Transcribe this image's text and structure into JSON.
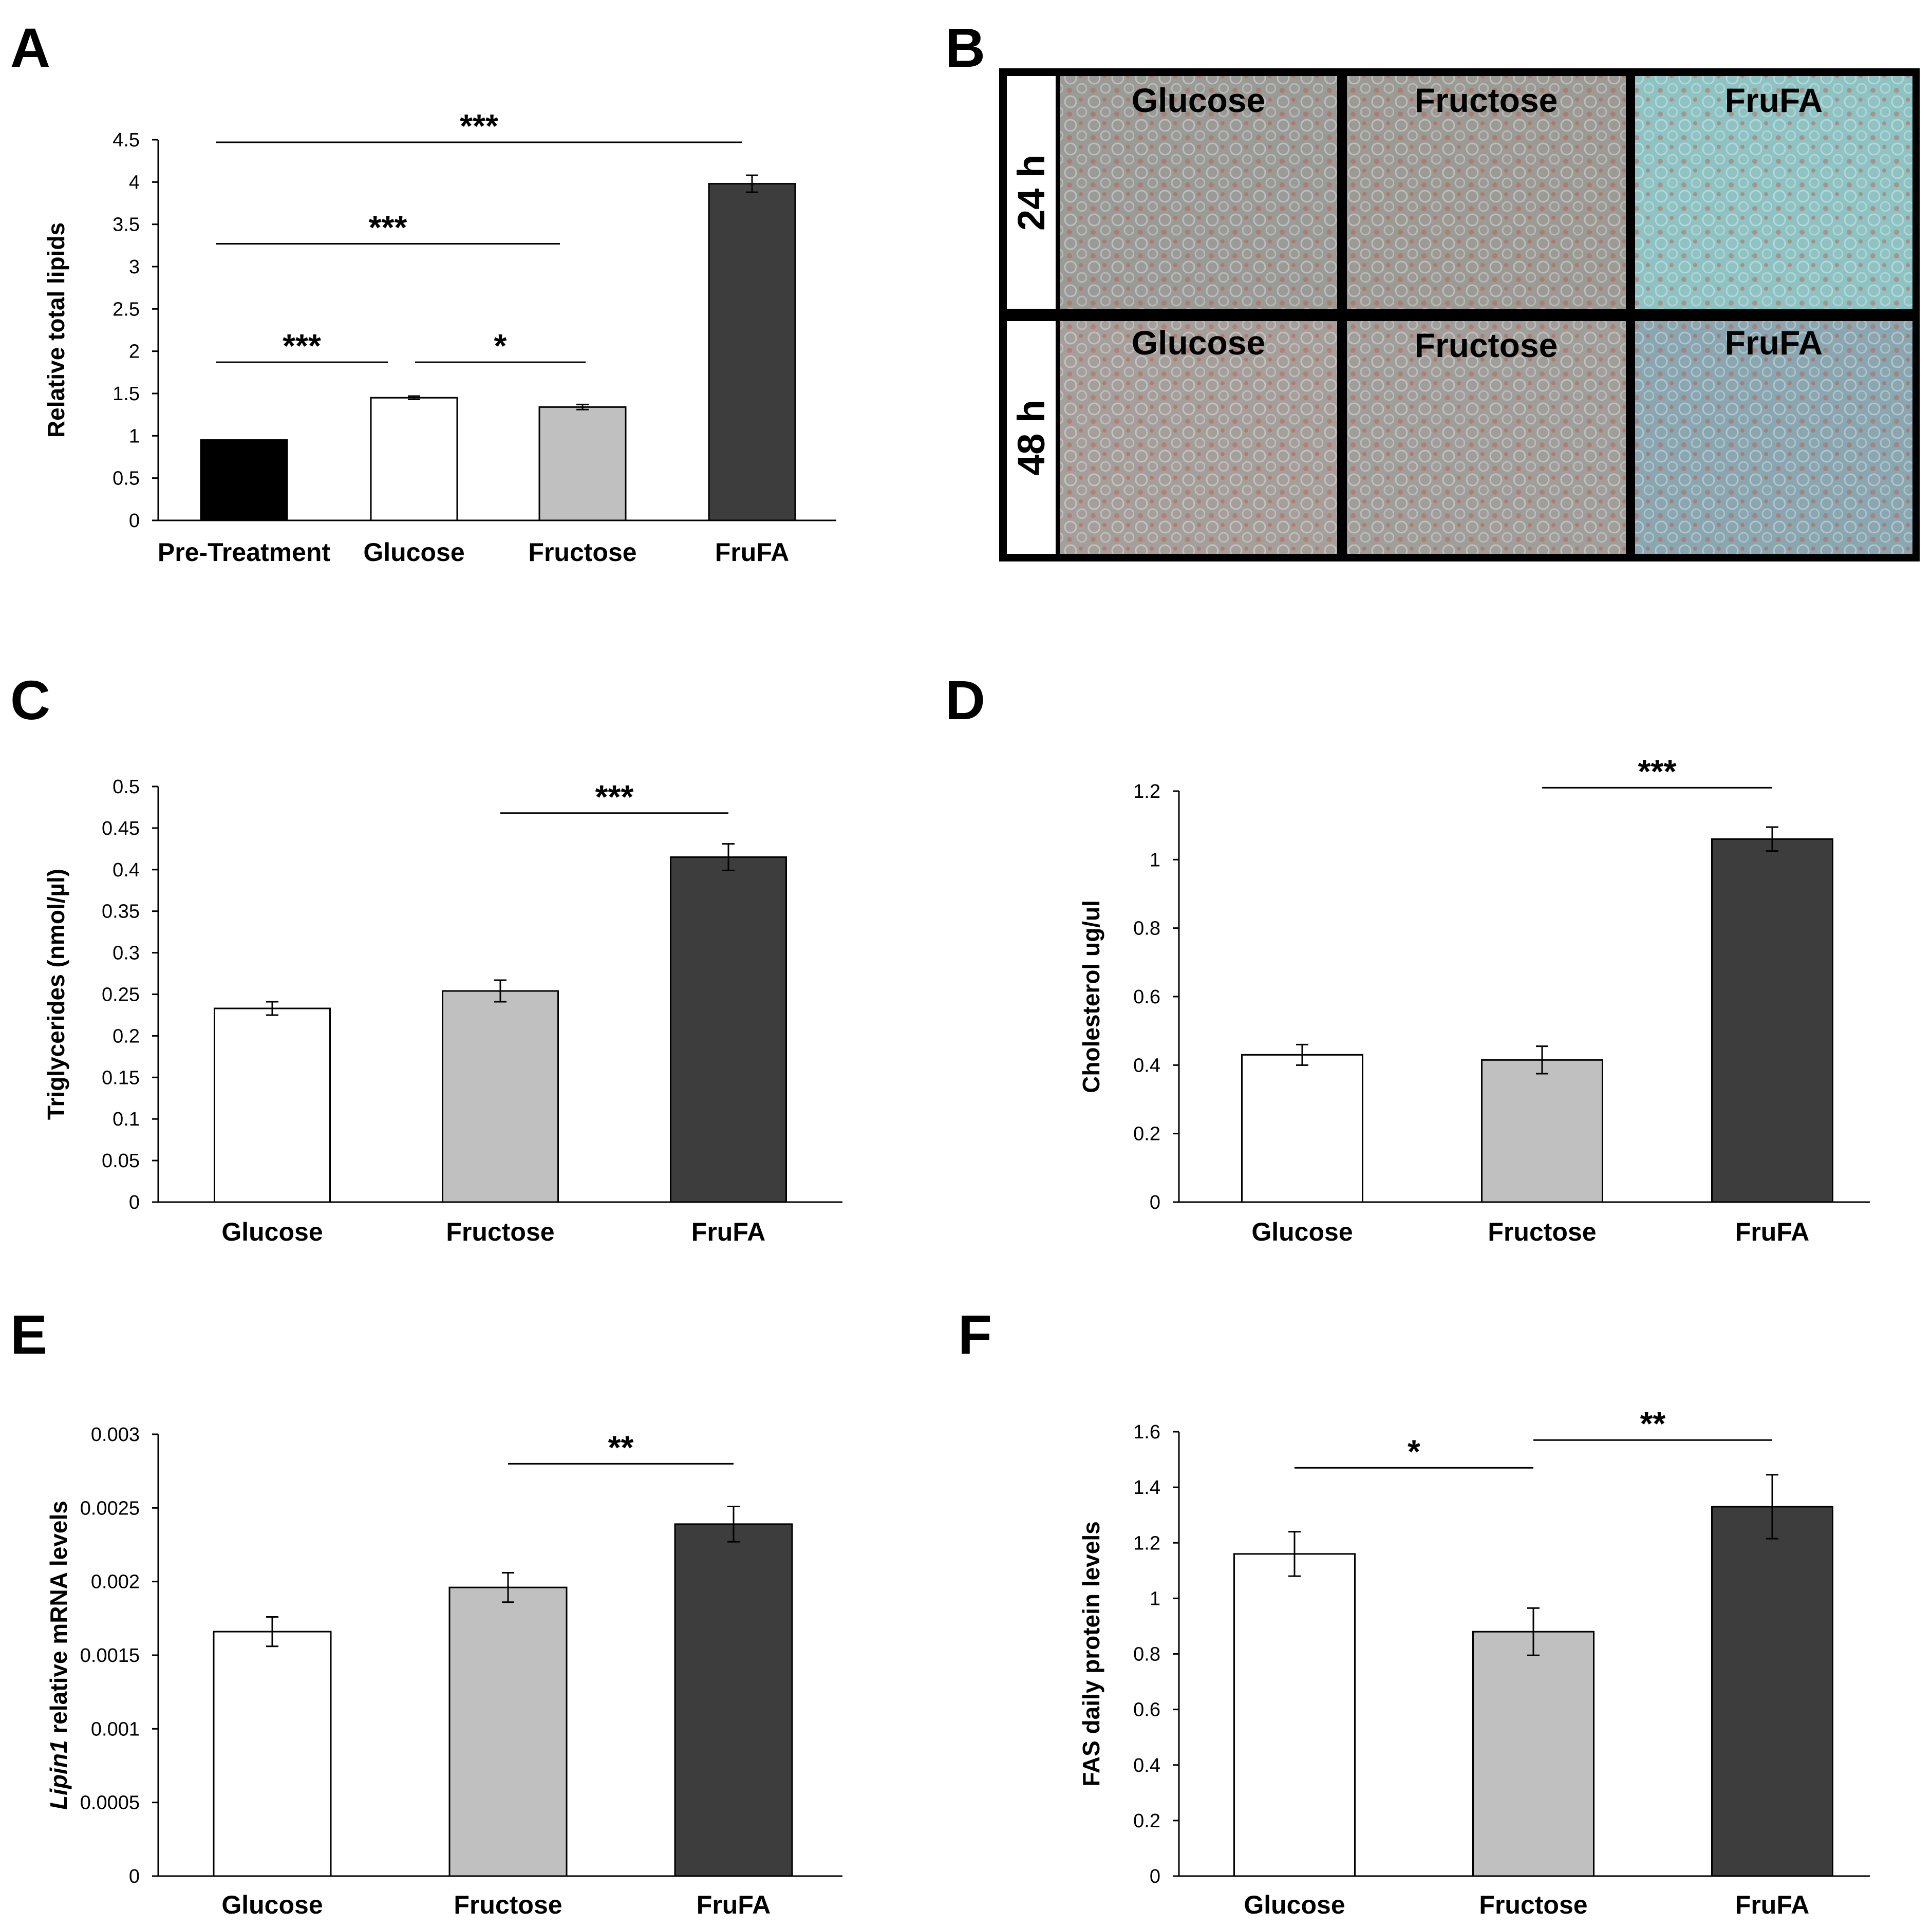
{
  "colors": {
    "black": "#000000",
    "white": "#ffffff",
    "light_gray": "#c0c0c0",
    "dark_gray": "#3d3d3d"
  },
  "panel_letters": {
    "A": "A",
    "B": "B",
    "C": "C",
    "D": "D",
    "E": "E",
    "F": "F"
  },
  "micrographs": {
    "rows": [
      "24 h",
      "48 h"
    ],
    "columns": [
      "Glucose",
      "Fructose",
      "FruFA"
    ],
    "tints": [
      "#9a9a96",
      "#9b9a95",
      "#8fc2c2",
      "#a59f9c",
      "#a09e9a",
      "#8aa6b0"
    ]
  },
  "chart_data": [
    {
      "panel": "A",
      "type": "bar",
      "ylabel": "Relative total lipids",
      "ylim": [
        0,
        4.5
      ],
      "ticks": [
        "0",
        "0.5",
        "1",
        "1.5",
        "2",
        "2.5",
        "3",
        "3.5",
        "4",
        "4.5"
      ],
      "categories": [
        "Pre-Treatment",
        "Glucose",
        "Fructose",
        "FruFA"
      ],
      "values": [
        0.95,
        1.45,
        1.34,
        3.98
      ],
      "errors": [
        0,
        0.02,
        0.03,
        0.1
      ],
      "bar_colors": [
        "#000000",
        "#ffffff",
        "#c0c0c0",
        "#3d3d3d"
      ],
      "significance": [
        {
          "from": 0,
          "to": 3,
          "value": 4.47,
          "label": "***"
        },
        {
          "from": 0,
          "to": 2,
          "value": 3.27,
          "label": "***"
        },
        {
          "from": 0,
          "to": 1,
          "value": 1.87,
          "label": "***"
        },
        {
          "from": 1,
          "to": 2,
          "value": 1.87,
          "label": "*"
        }
      ]
    },
    {
      "panel": "C",
      "type": "bar",
      "ylabel": "Triglycerides (nmol/µl)",
      "ylim": [
        0,
        0.5
      ],
      "ticks": [
        "0",
        "0.05",
        "0.1",
        "0.15",
        "0.2",
        "0.25",
        "0.3",
        "0.35",
        "0.4",
        "0.45",
        "0.5"
      ],
      "categories": [
        "Glucose",
        "Fructose",
        "FruFA"
      ],
      "values": [
        0.233,
        0.254,
        0.415
      ],
      "errors": [
        0.008,
        0.013,
        0.016
      ],
      "bar_colors": [
        "#ffffff",
        "#c0c0c0",
        "#3d3d3d"
      ],
      "significance": [
        {
          "from": 1,
          "to": 2,
          "value": 0.468,
          "label": "***"
        }
      ]
    },
    {
      "panel": "D",
      "type": "bar",
      "ylabel": "Cholesterol ug/ul",
      "ylim": [
        0,
        1.2
      ],
      "ticks": [
        "0",
        "0.2",
        "0.4",
        "0.6",
        "0.8",
        "1",
        "1.2"
      ],
      "categories": [
        "Glucose",
        "Fructose",
        "FruFA"
      ],
      "values": [
        0.43,
        0.415,
        1.06
      ],
      "errors": [
        0.03,
        0.04,
        0.035
      ],
      "bar_colors": [
        "#ffffff",
        "#c0c0c0",
        "#3d3d3d"
      ],
      "significance": [
        {
          "from": 1,
          "to": 2,
          "value": 1.21,
          "label": "***"
        }
      ]
    },
    {
      "panel": "E",
      "type": "bar",
      "ylabel": "relative mRNA levels",
      "ylabel_italic": "Lipin1",
      "ylim": [
        0,
        0.003
      ],
      "ticks": [
        "0",
        "0.0005",
        "0.001",
        "0.0015",
        "0.002",
        "0.0025",
        "0.003"
      ],
      "categories": [
        "Glucose",
        "Fructose",
        "FruFA"
      ],
      "values": [
        0.00166,
        0.00196,
        0.00239
      ],
      "errors": [
        0.0001,
        0.0001,
        0.00012
      ],
      "bar_colors": [
        "#ffffff",
        "#c0c0c0",
        "#3d3d3d"
      ],
      "significance": [
        {
          "from": 1,
          "to": 2,
          "value": 0.0028,
          "label": "**"
        }
      ]
    },
    {
      "panel": "F",
      "type": "bar",
      "ylabel": "FAS daily protein levels",
      "ylim": [
        0,
        1.6
      ],
      "ticks": [
        "0",
        "0.2",
        "0.4",
        "0.6",
        "0.8",
        "1",
        "1.2",
        "1.4",
        "1.6"
      ],
      "categories": [
        "Glucose",
        "Fructose",
        "FruFA"
      ],
      "values": [
        1.16,
        0.88,
        1.33
      ],
      "errors": [
        0.08,
        0.085,
        0.115
      ],
      "bar_colors": [
        "#ffffff",
        "#c0c0c0",
        "#3d3d3d"
      ],
      "significance": [
        {
          "from": 0,
          "to": 1,
          "value": 1.47,
          "label": "*"
        },
        {
          "from": 1,
          "to": 2,
          "value": 1.57,
          "label": "**"
        }
      ]
    }
  ]
}
